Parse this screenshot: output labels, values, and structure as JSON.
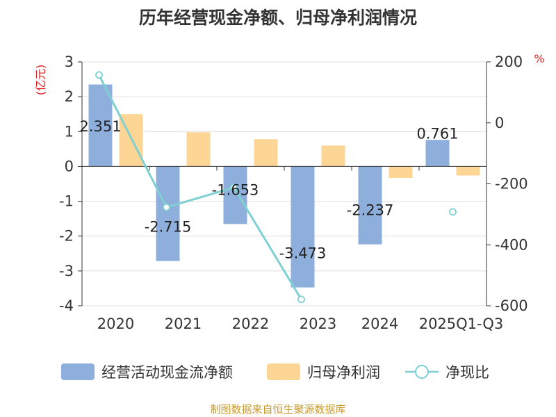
{
  "chart_data": {
    "type": "bar",
    "title": "历年经营现金净额、归母净利润情况",
    "categories": [
      "2020",
      "2021",
      "2022",
      "2023",
      "2024",
      "2025Q1-Q3"
    ],
    "series": [
      {
        "name": "经营活动现金流净额",
        "axis": "left",
        "kind": "bar",
        "color": "#8eaedc",
        "values": [
          2.351,
          -2.715,
          -1.653,
          -3.473,
          -2.237,
          0.761
        ],
        "labels": [
          "2.351",
          "-2.715",
          "-1.653",
          "-3.473",
          "-2.237",
          "0.761"
        ]
      },
      {
        "name": "归母净利润",
        "axis": "left",
        "kind": "bar",
        "color": "#fdd594",
        "values": [
          1.5,
          0.98,
          0.78,
          0.6,
          -0.33,
          -0.26
        ]
      },
      {
        "name": "净现比",
        "axis": "right",
        "kind": "line",
        "color": "#7fd0d3",
        "values": [
          157,
          -277,
          -212,
          -579,
          null,
          -292
        ]
      }
    ],
    "left_axis": {
      "label": "(亿元)",
      "ylim": [
        -4,
        3
      ],
      "ticks": [
        "3",
        "2",
        "1",
        "0",
        "-1",
        "-2",
        "-3",
        "-4"
      ]
    },
    "right_axis": {
      "label": "%",
      "ylim": [
        -600,
        200
      ],
      "ticks": [
        "200",
        "0",
        "-200",
        "-400",
        "-600"
      ]
    },
    "source": "制图数据来自恒生聚源数据库"
  }
}
